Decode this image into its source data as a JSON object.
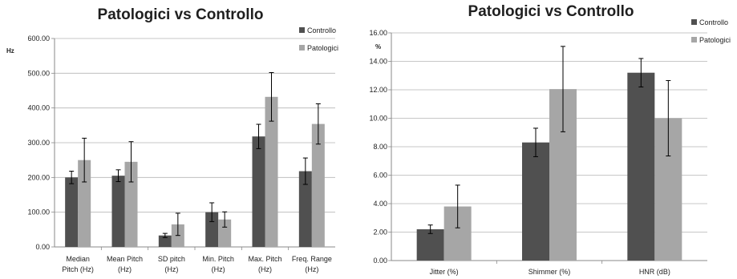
{
  "colors": {
    "controllo": "#505050",
    "patologici": "#a6a6a6",
    "axis": "#888888",
    "grid": "#b5b5b5",
    "error": "#000000"
  },
  "chart_data": [
    {
      "type": "bar",
      "title": "Patologici vs Controllo",
      "ylabel": "Hz",
      "ylim": [
        0,
        600
      ],
      "yticks": [
        "0.00",
        "100.00",
        "200.00",
        "300.00",
        "400.00",
        "500.00",
        "600.00"
      ],
      "grid": true,
      "legend": "top-right",
      "categories": [
        [
          "Median",
          "Pitch (Hz)"
        ],
        [
          "Mean Pitch",
          "(Hz)"
        ],
        [
          "SD pitch",
          "(Hz)"
        ],
        [
          "Min. Pitch",
          "(Hz)"
        ],
        [
          "Max. Pitch",
          "(Hz)"
        ],
        [
          "Freq. Range",
          "(Hz)"
        ]
      ],
      "series": [
        {
          "name": "Controllo",
          "values": [
            200,
            205,
            33,
            100,
            318,
            218
          ],
          "errors": [
            18,
            17,
            6,
            27,
            35,
            38
          ]
        },
        {
          "name": "Patologici",
          "values": [
            250,
            245,
            65,
            79,
            432,
            354
          ],
          "errors": [
            63,
            58,
            32,
            22,
            70,
            58
          ]
        }
      ]
    },
    {
      "type": "bar",
      "title": "Patologici vs Controllo",
      "ylabel": "%",
      "ylim": [
        0,
        16
      ],
      "yticks": [
        "0.00",
        "2.00",
        "4.00",
        "6.00",
        "8.00",
        "10.00",
        "12.00",
        "14.00",
        "16.00"
      ],
      "grid": true,
      "legend": "top-right",
      "categories": [
        [
          "Jitter (%)"
        ],
        [
          "Shimmer (%)"
        ],
        [
          "HNR (dB)"
        ]
      ],
      "series": [
        {
          "name": "Controllo",
          "values": [
            2.2,
            8.3,
            13.2
          ],
          "errors": [
            0.3,
            1.0,
            1.0
          ]
        },
        {
          "name": "Patologici",
          "values": [
            3.8,
            12.05,
            10.0
          ],
          "errors": [
            1.5,
            3.0,
            2.65
          ]
        }
      ]
    }
  ]
}
